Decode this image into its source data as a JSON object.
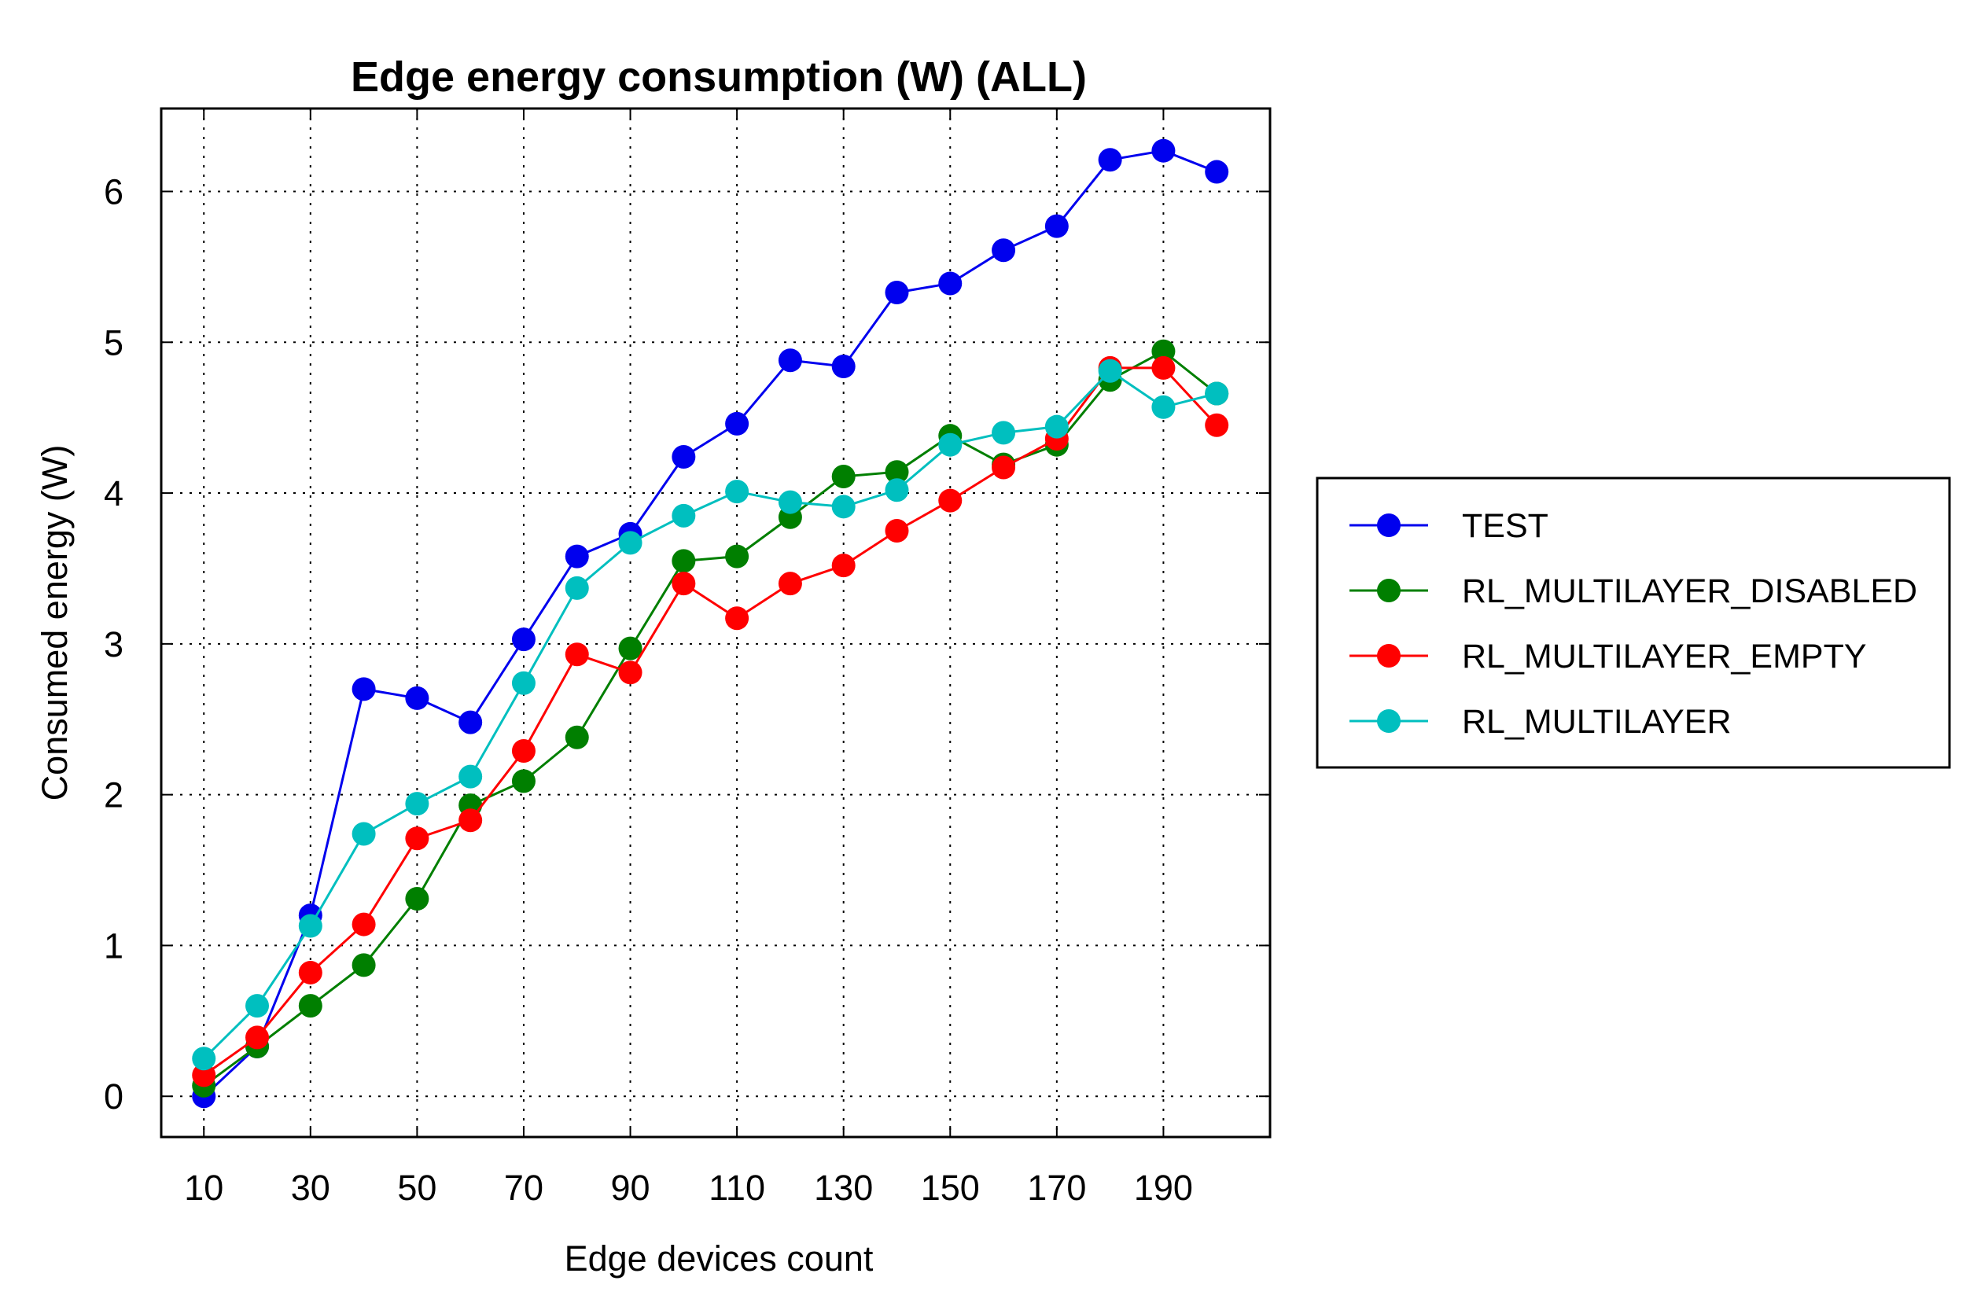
{
  "chart_data": {
    "type": "line",
    "title": "Edge energy consumption (W) (ALL)",
    "xlabel": "Edge devices count",
    "ylabel": "Consumed energy (W)",
    "x": [
      10,
      20,
      30,
      40,
      50,
      60,
      70,
      80,
      90,
      100,
      110,
      120,
      130,
      140,
      150,
      160,
      170,
      180,
      190,
      200
    ],
    "xticks": [
      10,
      30,
      50,
      70,
      90,
      110,
      130,
      150,
      170,
      190
    ],
    "yticks": [
      0,
      1,
      2,
      3,
      4,
      5,
      6
    ],
    "xlim": [
      2,
      210
    ],
    "ylim": [
      -0.27,
      6.55
    ],
    "grid": true,
    "legend_position": "right, outside plot",
    "series": [
      {
        "name": "TEST",
        "color": "#0000ee",
        "values": [
          0.0,
          0.33,
          1.2,
          2.7,
          2.64,
          2.48,
          3.03,
          3.58,
          3.73,
          4.24,
          4.46,
          4.88,
          4.84,
          5.33,
          5.39,
          5.61,
          5.77,
          6.21,
          6.27,
          6.13
        ]
      },
      {
        "name": "RL_MULTILAYER_DISABLED",
        "color": "#007f00",
        "values": [
          0.07,
          0.33,
          0.6,
          0.87,
          1.31,
          1.93,
          2.09,
          2.38,
          2.97,
          3.55,
          3.58,
          3.84,
          4.11,
          4.14,
          4.38,
          4.19,
          4.32,
          4.75,
          4.94,
          4.66
        ]
      },
      {
        "name": "RL_MULTILAYER_EMPTY",
        "color": "#ff0000",
        "values": [
          0.14,
          0.39,
          0.82,
          1.14,
          1.71,
          1.83,
          2.29,
          2.93,
          2.81,
          3.4,
          3.17,
          3.4,
          3.52,
          3.75,
          3.95,
          4.17,
          4.36,
          4.83,
          4.83,
          4.45
        ]
      },
      {
        "name": "RL_MULTILAYER",
        "color": "#00bfbf",
        "values": [
          0.25,
          0.6,
          1.13,
          1.74,
          1.94,
          2.12,
          2.74,
          3.37,
          3.67,
          3.85,
          4.01,
          3.94,
          3.91,
          4.02,
          4.32,
          4.4,
          4.44,
          4.81,
          4.57,
          4.66
        ]
      }
    ]
  }
}
